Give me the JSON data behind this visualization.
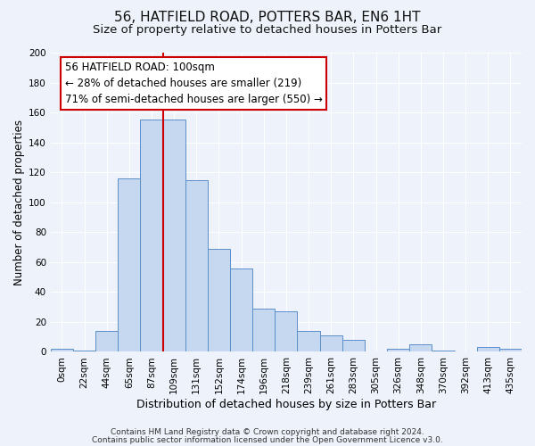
{
  "title": "56, HATFIELD ROAD, POTTERS BAR, EN6 1HT",
  "subtitle": "Size of property relative to detached houses in Potters Bar",
  "xlabel": "Distribution of detached houses by size in Potters Bar",
  "ylabel": "Number of detached properties",
  "bin_labels": [
    "0sqm",
    "22sqm",
    "44sqm",
    "65sqm",
    "87sqm",
    "109sqm",
    "131sqm",
    "152sqm",
    "174sqm",
    "196sqm",
    "218sqm",
    "239sqm",
    "261sqm",
    "283sqm",
    "305sqm",
    "326sqm",
    "348sqm",
    "370sqm",
    "392sqm",
    "413sqm",
    "435sqm"
  ],
  "bar_heights": [
    2,
    1,
    14,
    116,
    155,
    155,
    115,
    69,
    56,
    29,
    27,
    14,
    11,
    8,
    0,
    2,
    5,
    1,
    0,
    3,
    2
  ],
  "bar_color": "#c5d8f0",
  "bar_edge_color": "#5b8fc9",
  "vline_x_index": 4,
  "vline_color": "#cc0000",
  "annotation_title": "56 HATFIELD ROAD: 100sqm",
  "annotation_line1": "← 28% of detached houses are smaller (219)",
  "annotation_line2": "71% of semi-detached houses are larger (550) →",
  "ylim": [
    0,
    200
  ],
  "yticks": [
    0,
    20,
    40,
    60,
    80,
    100,
    120,
    140,
    160,
    180,
    200
  ],
  "footer1": "Contains HM Land Registry data © Crown copyright and database right 2024.",
  "footer2": "Contains public sector information licensed under the Open Government Licence v3.0.",
  "background_color": "#eef2fa",
  "grid_color": "#ffffff",
  "title_fontsize": 11,
  "subtitle_fontsize": 9.5,
  "xlabel_fontsize": 9,
  "ylabel_fontsize": 8.5,
  "tick_fontsize": 7.5,
  "annotation_fontsize": 8.5,
  "footer_fontsize": 6.5
}
